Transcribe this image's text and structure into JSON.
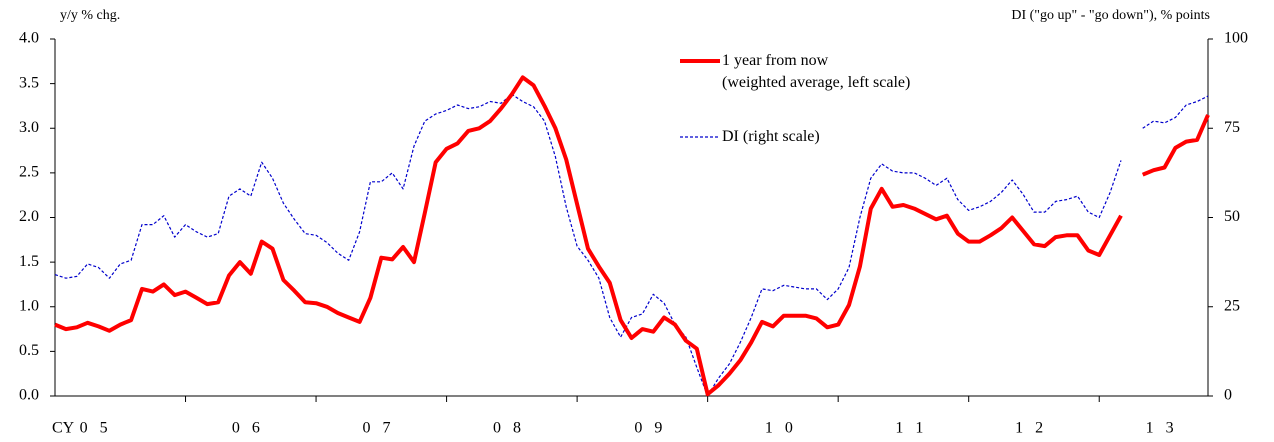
{
  "chart_data": {
    "type": "line",
    "ylabel": "y/y % chg.",
    "y2label": "DI (\"go up\" - \"go down\"), % points",
    "xlabel": "CY",
    "legend": "top",
    "categories": [
      null,
      null,
      null,
      "0 5",
      null,
      null,
      null,
      null,
      null,
      null,
      null,
      null,
      null,
      null,
      null,
      null,
      null,
      "0 6",
      null,
      null,
      null,
      null,
      null,
      null,
      null,
      null,
      null,
      null,
      null,
      "0 7",
      null,
      null,
      null,
      null,
      null,
      null,
      null,
      null,
      null,
      null,
      null,
      "0 8",
      null,
      null,
      null,
      null,
      null,
      null,
      null,
      null,
      null,
      null,
      null,
      null,
      "0 9",
      null,
      null,
      null,
      null,
      null,
      null,
      null,
      null,
      null,
      null,
      null,
      "1 0",
      null,
      null,
      null,
      null,
      null,
      null,
      null,
      null,
      null,
      null,
      null,
      "1 1",
      null,
      null,
      null,
      null,
      null,
      null,
      null,
      null,
      null,
      null,
      "1 2",
      null,
      null,
      null,
      null,
      null,
      null,
      null,
      null,
      null,
      null,
      null,
      "1 3",
      null,
      null,
      null,
      null,
      null
    ],
    "series": [
      {
        "name": "1 year from now\n(weighted average, left scale)",
        "color": "#ff0000",
        "axis": "y",
        "values": [
          0.8,
          0.75,
          0.77,
          0.82,
          0.78,
          0.73,
          0.8,
          0.85,
          1.2,
          1.17,
          1.25,
          1.13,
          1.17,
          1.1,
          1.03,
          1.05,
          1.35,
          1.5,
          1.37,
          1.73,
          1.65,
          1.3,
          1.18,
          1.05,
          1.04,
          1.0,
          0.93,
          0.88,
          0.83,
          1.1,
          1.55,
          1.53,
          1.67,
          1.5,
          2.05,
          2.62,
          2.77,
          2.83,
          2.97,
          3.0,
          3.08,
          3.22,
          3.38,
          3.57,
          3.48,
          3.25,
          3.0,
          2.65,
          2.15,
          1.65,
          1.45,
          1.27,
          0.85,
          0.65,
          0.75,
          0.72,
          0.88,
          0.8,
          0.62,
          0.53,
          0.02,
          0.12,
          0.25,
          0.4,
          0.6,
          0.83,
          0.78,
          0.9,
          0.9,
          0.9,
          0.87,
          0.77,
          0.8,
          1.02,
          1.45,
          2.1,
          2.32,
          2.12,
          2.14,
          2.1,
          2.04,
          1.98,
          2.02,
          1.82,
          1.73,
          1.73,
          1.8,
          1.88,
          2.0,
          1.85,
          1.7,
          1.68,
          1.78,
          1.8,
          1.8,
          1.63,
          1.58,
          1.8,
          2.02,
          null,
          2.48,
          2.53,
          2.56,
          2.78,
          2.85,
          2.87,
          3.15
        ]
      },
      {
        "name": "DI (right scale)",
        "color": "#0000cc",
        "axis": "y2",
        "values": [
          34,
          33,
          33.5,
          37,
          36,
          33,
          37,
          38,
          48,
          48,
          50.5,
          44.5,
          48,
          46,
          44.5,
          45.5,
          56,
          58,
          56,
          65.5,
          61,
          54,
          49.5,
          45.5,
          45,
          43,
          40,
          38,
          46,
          60,
          60,
          62.5,
          58,
          70,
          77,
          79,
          80,
          81.5,
          80.5,
          81,
          82.5,
          82,
          84.5,
          82.5,
          81,
          77,
          67,
          53,
          42,
          38,
          33,
          22,
          16.5,
          22,
          23,
          28.5,
          26,
          20,
          16.5,
          8,
          0,
          5,
          9,
          15,
          22,
          30,
          29.5,
          31,
          30.5,
          30,
          30,
          27,
          30,
          36,
          50,
          61,
          65,
          63,
          62.5,
          62.5,
          61,
          59,
          61,
          55,
          52,
          53,
          54.5,
          57,
          60.5,
          56.5,
          51.5,
          51.5,
          54.5,
          55,
          56,
          51.5,
          50,
          57,
          66,
          null,
          75,
          77,
          76.5,
          78,
          81.5,
          82.5,
          84
        ]
      }
    ],
    "ylim": [
      0,
      4
    ],
    "yticks": [
      {
        "value": 0,
        "label": "0.0"
      },
      0.5,
      {
        "value": 1,
        "label": "1.0"
      },
      1.5,
      {
        "value": 2,
        "label": "2.0"
      },
      2.5,
      {
        "value": 3,
        "label": "3.0"
      },
      3.5,
      {
        "value": 4,
        "label": "4.0"
      }
    ],
    "y2lim": [
      0,
      100
    ],
    "y2ticks": [
      0,
      25,
      50,
      75,
      100
    ]
  }
}
